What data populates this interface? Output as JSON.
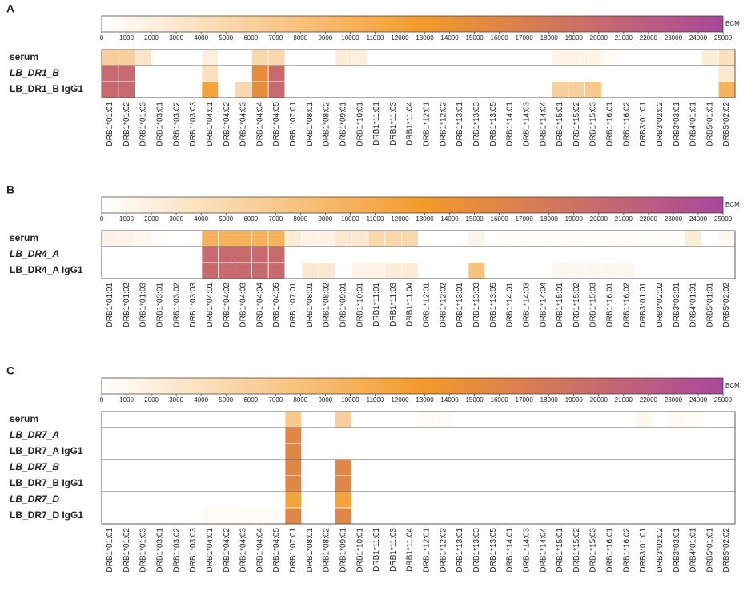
{
  "chart_data": [
    {
      "type": "heatmap",
      "panel_label": "A",
      "colorbar": {
        "label": "BCM",
        "lim": [
          0,
          25000
        ],
        "ticks": [
          0,
          1000,
          2000,
          3000,
          4000,
          5000,
          6000,
          7000,
          8000,
          9000,
          10000,
          11000,
          12000,
          13000,
          14000,
          15000,
          16000,
          17000,
          18000,
          19000,
          20000,
          21000,
          22000,
          23000,
          24000,
          25000
        ]
      },
      "colorscale": [
        {
          "value": 0,
          "color": "#ffffff"
        },
        {
          "value": 13000,
          "color": "#f39a2a"
        },
        {
          "value": 25000,
          "color": "#a8489c"
        }
      ],
      "categories": [
        "DRB1*01:01",
        "DRB1*01:02",
        "DRB1*01:03",
        "DRB1*03:01",
        "DRB1*03:02",
        "DRB1*03:03",
        "DRB1*04:01",
        "DRB1*04:02",
        "DRB1*04:03",
        "DRB1*04:04",
        "DRB1*04:05",
        "DRB1*07:01",
        "DRB1*08:01",
        "DRB1*08:02",
        "DRB1*09:01",
        "DRB1*10:01",
        "DRB1*11:01",
        "DRB1*11:03",
        "DRB1*11:04",
        "DRB1*12:01",
        "DRB1*12:02",
        "DRB1*13:01",
        "DRB1*13:03",
        "DRB1*13:05",
        "DRB1*14:01",
        "DRB1*14:03",
        "DRB1*14:04",
        "DRB1*15:01",
        "DRB1*15:02",
        "DRB1*15:03",
        "DRB1*16:01",
        "DRB1*16:02",
        "DRB3*01:01",
        "DRB3*02:02",
        "DRB3*03:01",
        "DRB4*01:01",
        "DRB5*01:01",
        "DRB5*02:02"
      ],
      "series": [
        {
          "name": "serum",
          "italic": false,
          "values": [
            6000,
            6000,
            3500,
            0,
            0,
            0,
            2000,
            0,
            0,
            5000,
            5000,
            0,
            0,
            0,
            2500,
            2000,
            0,
            0,
            0,
            0,
            0,
            0,
            0,
            0,
            0,
            0,
            0,
            1500,
            1500,
            1500,
            500,
            0,
            0,
            0,
            0,
            0,
            2500,
            4000
          ]
        },
        {
          "name": "LB_DR1_B",
          "italic": true,
          "values": [
            20000,
            20000,
            0,
            0,
            0,
            0,
            4000,
            0,
            0,
            15000,
            20000,
            0,
            0,
            0,
            0,
            0,
            0,
            0,
            0,
            0,
            0,
            0,
            0,
            0,
            0,
            0,
            0,
            0,
            0,
            0,
            0,
            0,
            0,
            0,
            0,
            0,
            0,
            3000
          ]
        },
        {
          "name": "LB_DR1_B IgG1",
          "italic": false,
          "values": [
            20000,
            20000,
            0,
            0,
            0,
            0,
            12000,
            0,
            5000,
            15000,
            20000,
            0,
            0,
            0,
            0,
            0,
            0,
            0,
            0,
            0,
            0,
            0,
            0,
            0,
            0,
            0,
            0,
            6000,
            6000,
            7000,
            0,
            0,
            0,
            0,
            0,
            0,
            0,
            10000
          ]
        }
      ]
    },
    {
      "type": "heatmap",
      "panel_label": "B",
      "colorbar": {
        "label": "BCM",
        "lim": [
          0,
          25000
        ],
        "ticks": [
          0,
          1000,
          2000,
          3000,
          4000,
          5000,
          6000,
          7000,
          8000,
          9000,
          10000,
          11000,
          12000,
          13000,
          14000,
          15000,
          16000,
          17000,
          18000,
          19000,
          20000,
          21000,
          22000,
          23000,
          24000,
          25000
        ]
      },
      "colorscale": [
        {
          "value": 0,
          "color": "#ffffff"
        },
        {
          "value": 13000,
          "color": "#f39a2a"
        },
        {
          "value": 25000,
          "color": "#a8489c"
        }
      ],
      "categories": [
        "DRB1*01:01",
        "DRB1*01:02",
        "DRB1*01:03",
        "DRB1*03:01",
        "DRB1*03:02",
        "DRB1*03:03",
        "DRB1*04:01",
        "DRB1*04:02",
        "DRB1*04:03",
        "DRB1*04:04",
        "DRB1*04:05",
        "DRB1*07:01",
        "DRB1*08:01",
        "DRB1*08:02",
        "DRB1*09:01",
        "DRB1*10:01",
        "DRB1*11:01",
        "DRB1*11:03",
        "DRB1*11:04",
        "DRB1*12:01",
        "DRB1*12:02",
        "DRB1*13:01",
        "DRB1*13:03",
        "DRB1*13:05",
        "DRB1*14:01",
        "DRB1*14:03",
        "DRB1*14:04",
        "DRB1*15:01",
        "DRB1*15:02",
        "DRB1*15:03",
        "DRB1*16:01",
        "DRB1*16:02",
        "DRB3*01:01",
        "DRB3*02:02",
        "DRB3*03:01",
        "DRB4*01:01",
        "DRB5*01:01",
        "DRB5*02:02"
      ],
      "series": [
        {
          "name": "serum",
          "italic": false,
          "values": [
            1500,
            1500,
            1000,
            300,
            0,
            0,
            10000,
            10000,
            10000,
            10000,
            10000,
            2500,
            1500,
            1500,
            3000,
            3000,
            5000,
            5000,
            5000,
            0,
            0,
            0,
            1500,
            0,
            500,
            500,
            500,
            500,
            500,
            500,
            500,
            500,
            300,
            300,
            300,
            2500,
            0,
            1000
          ]
        },
        {
          "name": "LB_DR4_A",
          "italic": true,
          "values": [
            0,
            0,
            0,
            0,
            0,
            0,
            20000,
            20000,
            20000,
            20000,
            20000,
            0,
            0,
            0,
            0,
            0,
            0,
            0,
            0,
            0,
            0,
            0,
            0,
            0,
            0,
            0,
            0,
            0,
            0,
            0,
            0,
            0,
            0,
            0,
            0,
            0,
            0,
            0
          ]
        },
        {
          "name": "LB_DR4_A IgG1",
          "italic": false,
          "values": [
            0,
            0,
            0,
            0,
            0,
            0,
            20000,
            20000,
            20000,
            20000,
            20000,
            0,
            3000,
            3000,
            0,
            1500,
            1500,
            2500,
            2500,
            0,
            0,
            0,
            8000,
            0,
            0,
            0,
            0,
            1000,
            1000,
            1000,
            1000,
            1000,
            0,
            0,
            0,
            0,
            0,
            0
          ]
        }
      ]
    },
    {
      "type": "heatmap",
      "panel_label": "C",
      "colorbar": {
        "label": "BCM",
        "lim": [
          0,
          25000
        ],
        "ticks": [
          0,
          1000,
          2000,
          3000,
          4000,
          5000,
          6000,
          7000,
          8000,
          9000,
          10000,
          11000,
          12000,
          13000,
          14000,
          15000,
          16000,
          17000,
          18000,
          19000,
          20000,
          21000,
          22000,
          23000,
          24000,
          25000
        ]
      },
      "colorscale": [
        {
          "value": 0,
          "color": "#ffffff"
        },
        {
          "value": 13000,
          "color": "#f39a2a"
        },
        {
          "value": 25000,
          "color": "#a8489c"
        }
      ],
      "categories": [
        "DRB1*01:01",
        "DRB1*01:02",
        "DRB1*01:03",
        "DRB1*03:01",
        "DRB1*03:02",
        "DRB1*03:03",
        "DRB1*04:01",
        "DRB1*04:02",
        "DRB1*04:03",
        "DRB1*04:04",
        "DRB1*04:05",
        "DRB1*07:01",
        "DRB1*08:01",
        "DRB1*08:02",
        "DRB1*09:01",
        "DRB1*10:01",
        "DRB1*11:01",
        "DRB1*11:03",
        "DRB1*11:04",
        "DRB1*12:01",
        "DRB1*12:02",
        "DRB1*13:01",
        "DRB1*13:03",
        "DRB1*13:05",
        "DRB1*14:01",
        "DRB1*14:03",
        "DRB1*14:04",
        "DRB1*15:01",
        "DRB1*15:02",
        "DRB1*15:03",
        "DRB1*16:01",
        "DRB1*16:02",
        "DRB3*01:01",
        "DRB3*02:02",
        "DRB3*03:01",
        "DRB4*01:01",
        "DRB5*01:01",
        "DRB5*02:02"
      ],
      "series": [
        {
          "name": "serum",
          "italic": false,
          "values": [
            0,
            0,
            0,
            0,
            0,
            0,
            0,
            0,
            0,
            0,
            0,
            7000,
            0,
            0,
            6000,
            0,
            0,
            0,
            0,
            600,
            600,
            0,
            0,
            0,
            0,
            0,
            0,
            0,
            0,
            0,
            0,
            0,
            1000,
            0,
            800,
            500,
            0,
            0
          ]
        },
        {
          "name": "LB_DR7_A",
          "italic": true,
          "values": [
            0,
            0,
            0,
            0,
            0,
            0,
            0,
            0,
            0,
            0,
            0,
            16000,
            0,
            0,
            0,
            0,
            0,
            0,
            0,
            0,
            0,
            0,
            0,
            0,
            0,
            0,
            0,
            0,
            0,
            0,
            0,
            0,
            0,
            0,
            0,
            0,
            0,
            0
          ]
        },
        {
          "name": "LB_DR7_A IgG1",
          "italic": false,
          "values": [
            0,
            0,
            0,
            0,
            0,
            0,
            0,
            0,
            0,
            0,
            0,
            16000,
            0,
            0,
            0,
            0,
            0,
            0,
            0,
            0,
            0,
            0,
            0,
            0,
            0,
            0,
            0,
            0,
            0,
            0,
            0,
            0,
            0,
            0,
            0,
            0,
            0,
            0
          ]
        },
        {
          "name": "LB_DR7_B",
          "italic": true,
          "values": [
            0,
            0,
            0,
            0,
            0,
            0,
            0,
            0,
            0,
            0,
            0,
            16000,
            0,
            0,
            16000,
            0,
            0,
            0,
            0,
            0,
            0,
            0,
            0,
            0,
            0,
            0,
            0,
            0,
            0,
            0,
            0,
            0,
            0,
            0,
            0,
            0,
            0,
            0
          ]
        },
        {
          "name": "LB_DR7_B IgG1",
          "italic": false,
          "values": [
            0,
            0,
            0,
            0,
            0,
            0,
            0,
            0,
            0,
            0,
            0,
            16000,
            0,
            0,
            16000,
            0,
            0,
            0,
            0,
            0,
            0,
            0,
            0,
            0,
            0,
            0,
            0,
            0,
            0,
            0,
            0,
            0,
            0,
            0,
            0,
            0,
            0,
            0
          ]
        },
        {
          "name": "LB_DR7_D",
          "italic": true,
          "values": [
            0,
            0,
            0,
            0,
            0,
            0,
            0,
            0,
            0,
            0,
            0,
            12000,
            0,
            0,
            12000,
            0,
            0,
            0,
            0,
            0,
            0,
            0,
            0,
            0,
            0,
            0,
            0,
            0,
            0,
            0,
            0,
            0,
            0,
            0,
            0,
            0,
            0,
            0
          ]
        },
        {
          "name": "LB_DR7_D IgG1",
          "italic": false,
          "values": [
            0,
            0,
            0,
            0,
            0,
            0,
            600,
            600,
            600,
            600,
            600,
            16000,
            0,
            0,
            16000,
            0,
            0,
            0,
            0,
            0,
            0,
            0,
            0,
            0,
            0,
            0,
            0,
            0,
            0,
            0,
            0,
            0,
            0,
            0,
            0,
            0,
            0,
            0
          ]
        }
      ]
    }
  ]
}
